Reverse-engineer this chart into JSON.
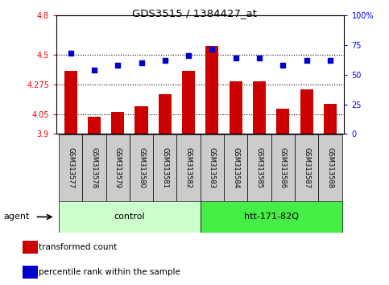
{
  "title": "GDS3515 / 1384427_at",
  "categories": [
    "GSM313577",
    "GSM313578",
    "GSM313579",
    "GSM313580",
    "GSM313581",
    "GSM313582",
    "GSM313583",
    "GSM313584",
    "GSM313585",
    "GSM313586",
    "GSM313587",
    "GSM313588"
  ],
  "bar_values": [
    4.38,
    4.03,
    4.07,
    4.11,
    4.2,
    4.38,
    4.57,
    4.3,
    4.3,
    4.09,
    4.24,
    4.13
  ],
  "percentile_values": [
    68,
    54,
    58,
    60,
    62,
    66,
    72,
    64,
    64,
    58,
    62,
    62
  ],
  "ylim_left": [
    3.9,
    4.8
  ],
  "ylim_right": [
    0,
    100
  ],
  "yticks_left": [
    3.9,
    4.05,
    4.275,
    4.5,
    4.8
  ],
  "yticks_right": [
    0,
    25,
    50,
    75,
    100
  ],
  "ytick_labels_left": [
    "3.9",
    "4.05",
    "4.275",
    "4.5",
    "4.8"
  ],
  "ytick_labels_right": [
    "0",
    "25",
    "50",
    "75",
    "100%"
  ],
  "hlines": [
    4.05,
    4.275,
    4.5
  ],
  "bar_color": "#cc0000",
  "dot_color": "#0000cc",
  "bar_width": 0.55,
  "control_label": "control",
  "treatment_label": "htt-171-82Q",
  "agent_label": "agent",
  "control_indices": [
    0,
    1,
    2,
    3,
    4,
    5
  ],
  "treatment_indices": [
    6,
    7,
    8,
    9,
    10,
    11
  ],
  "control_color": "#ccffcc",
  "treatment_color": "#44ee44",
  "legend_bar_label": "transformed count",
  "legend_dot_label": "percentile rank within the sample",
  "tick_area_color": "#cccccc",
  "background_color": "#ffffff"
}
